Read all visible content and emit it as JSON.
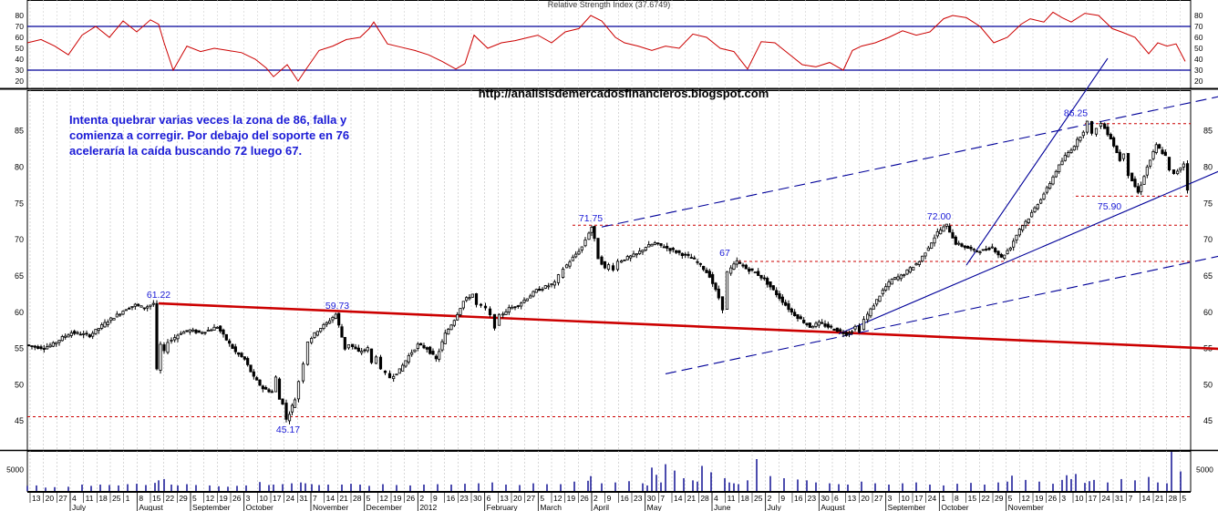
{
  "rsi_title": "Relative Strength Index (37.6749)",
  "url": "http://analisisdemercadosfinancieros.blogspot.com",
  "note": "Intenta quebrar varias veces la zona de 86, falla y comienza a corregir. Por debajo del soporte en 76 aceleraría la caída buscando 72 luego 67.",
  "colors": {
    "price": "#000000",
    "rsi": "#cc0000",
    "support": "#cc0000",
    "trend": "#000099",
    "annotation": "#1a1ad6"
  },
  "chart_data": [
    {
      "type": "line",
      "panel": "rsi",
      "title": "Relative Strength Index (37.6749)",
      "ylim": [
        15,
        85
      ],
      "yticks": [
        20,
        30,
        40,
        50,
        60,
        70,
        80
      ],
      "reference_lines": [
        30,
        70
      ],
      "x": [
        0,
        15,
        30,
        45,
        60,
        75,
        90,
        105,
        120,
        135,
        144,
        150,
        160,
        175,
        190,
        205,
        220,
        235,
        250,
        262,
        270,
        285,
        297,
        305,
        320,
        335,
        350,
        365,
        375,
        380,
        395,
        410,
        425,
        440,
        455,
        470,
        480,
        490,
        505,
        520,
        535,
        550,
        560,
        575,
        590,
        605,
        618,
        630,
        645,
        655,
        670,
        685,
        700,
        715,
        730,
        745,
        760,
        775,
        790,
        805,
        820,
        835,
        850,
        865,
        880,
        895,
        905,
        915,
        930,
        945,
        960,
        975,
        990,
        1005,
        1015,
        1030,
        1045,
        1060,
        1075,
        1090,
        1100,
        1115,
        1125,
        1135,
        1145,
        1160,
        1175,
        1190,
        1200,
        1215,
        1230,
        1240,
        1250,
        1260,
        1270
      ],
      "values": [
        55,
        58,
        52,
        44,
        62,
        70,
        60,
        75,
        65,
        76,
        72,
        55,
        30,
        52,
        47,
        50,
        48,
        46,
        40,
        32,
        24,
        35,
        20,
        30,
        48,
        52,
        58,
        60,
        68,
        74,
        54,
        51,
        48,
        44,
        38,
        31,
        36,
        62,
        50,
        55,
        57,
        60,
        62,
        55,
        65,
        68,
        80,
        75,
        60,
        55,
        52,
        48,
        52,
        50,
        63,
        60,
        50,
        47,
        31,
        56,
        55,
        45,
        35,
        33,
        37,
        30,
        48,
        52,
        55,
        60,
        66,
        62,
        65,
        77,
        80,
        78,
        70,
        55,
        60,
        72,
        77,
        74,
        83,
        78,
        74,
        82,
        80,
        68,
        65,
        60,
        45,
        55,
        52,
        54,
        38
      ]
    },
    {
      "type": "candlestick",
      "panel": "price",
      "ylim": [
        41,
        91
      ],
      "yticks": [
        45,
        50,
        55,
        60,
        65,
        70,
        75,
        80,
        85
      ],
      "x_tick_labels": [
        "13",
        "20",
        "27",
        "4",
        "11",
        "18",
        "25",
        "1",
        "8",
        "15",
        "22",
        "29",
        "5",
        "12",
        "19",
        "26",
        "3",
        "10",
        "17",
        "24",
        "31",
        "7",
        "14",
        "21",
        "28",
        "5",
        "12",
        "19",
        "26",
        "2",
        "9",
        "16",
        "23",
        "30",
        "6",
        "13",
        "20",
        "27",
        "5",
        "12",
        "19",
        "26",
        "2",
        "9",
        "16",
        "23",
        "30",
        "7",
        "14",
        "21",
        "28",
        "4",
        "11",
        "18",
        "25",
        "2",
        "9",
        "16",
        "23",
        "30",
        "6",
        "13",
        "20",
        "27",
        "3",
        "10",
        "17",
        "24",
        "1",
        "8",
        "15",
        "22",
        "29",
        "5",
        "12",
        "19",
        "26",
        "3",
        "10",
        "17",
        "24",
        "31",
        "7",
        "14",
        "21",
        "28",
        "5"
      ],
      "x_month_labels": [
        "July",
        "August",
        "September",
        "October",
        "November",
        "December",
        "2012",
        "February",
        "March",
        "April",
        "May",
        "June",
        "July",
        "August",
        "September",
        "October",
        "November"
      ],
      "close_x": [
        0,
        10,
        20,
        30,
        40,
        50,
        60,
        70,
        80,
        90,
        100,
        110,
        120,
        130,
        140,
        144,
        148,
        152,
        156,
        160,
        170,
        180,
        190,
        200,
        210,
        220,
        230,
        240,
        250,
        260,
        270,
        275,
        278,
        282,
        286,
        295,
        300,
        305,
        310,
        320,
        330,
        340,
        350,
        355,
        365,
        375,
        380,
        385,
        390,
        395,
        400,
        410,
        420,
        430,
        440,
        450,
        460,
        470,
        480,
        490,
        495,
        500,
        505,
        510,
        515,
        520,
        530,
        540,
        550,
        560,
        570,
        580,
        585,
        590,
        600,
        610,
        614,
        618,
        620,
        624,
        628,
        632,
        635,
        640,
        645,
        650,
        660,
        670,
        680,
        690,
        700,
        710,
        720,
        730,
        740,
        750,
        760,
        765,
        770,
        780,
        790,
        800,
        810,
        820,
        830,
        840,
        850,
        860,
        870,
        880,
        890,
        900,
        906,
        910,
        915,
        920,
        930,
        940,
        950,
        960,
        970,
        980,
        990,
        1000,
        1010,
        1020,
        1030,
        1040,
        1050,
        1060,
        1070,
        1080,
        1090,
        1100,
        1110,
        1120,
        1130,
        1140,
        1150,
        1160,
        1165,
        1170,
        1175,
        1180,
        1190,
        1200,
        1205,
        1210,
        1220,
        1230,
        1240,
        1250,
        1255,
        1260,
        1270,
        1275
      ],
      "close_values": [
        55.5,
        55.2,
        55.1,
        55.6,
        56.5,
        57.2,
        57.0,
        56.8,
        57.8,
        58.8,
        59.6,
        60.5,
        61.0,
        60.6,
        61.22,
        52.0,
        55.5,
        54.5,
        56.0,
        56.2,
        57.2,
        57.5,
        57.2,
        57.5,
        58.0,
        56.2,
        54.5,
        53.5,
        51.0,
        49.5,
        49.0,
        51.0,
        48.0,
        47.5,
        45.17,
        48.0,
        50.5,
        53.0,
        56.0,
        57.5,
        58.5,
        59.73,
        55.0,
        55.6,
        54.5,
        55.0,
        53.0,
        54.0,
        52.0,
        51.5,
        51.0,
        52.0,
        54.0,
        55.5,
        55.0,
        53.5,
        57.0,
        59.0,
        61.5,
        62.5,
        61.0,
        60.8,
        60.5,
        59.5,
        58.0,
        59.5,
        60.5,
        61.0,
        62.0,
        63.0,
        63.5,
        64.0,
        65.0,
        66.0,
        67.5,
        69.0,
        70.0,
        71.0,
        71.75,
        70.0,
        67.5,
        66.8,
        66.0,
        66.5,
        66.0,
        67.0,
        67.5,
        68.0,
        69.0,
        69.5,
        69.0,
        68.5,
        68.0,
        67.5,
        66.5,
        65.0,
        62.0,
        60.5,
        65.5,
        67.0,
        66.0,
        65.5,
        64.5,
        63.0,
        61.5,
        60.0,
        59.0,
        58.0,
        58.5,
        58.0,
        57.5,
        57.0,
        57.5,
        58.0,
        57.5,
        59.0,
        61.0,
        63.0,
        64.5,
        65.0,
        66.0,
        67.0,
        69.0,
        71.0,
        72.0,
        69.5,
        69.0,
        68.5,
        68.5,
        69.0,
        67.5,
        69.0,
        71.5,
        73.0,
        75.0,
        77.0,
        79.5,
        81.5,
        83.0,
        85.0,
        86.25,
        84.5,
        85.5,
        86.0,
        84.0,
        81.0,
        82.0,
        79.0,
        76.5,
        80.0,
        83.0,
        81.5,
        79.5,
        79.0,
        80.5,
        77.0,
        76.5
      ],
      "labels": [
        {
          "text": "61.22",
          "x": 144,
          "y": 61.22
        },
        {
          "text": "45.17",
          "x": 286,
          "y": 45.17
        },
        {
          "text": "59.73",
          "x": 340,
          "y": 59.73
        },
        {
          "text": "71.75",
          "x": 618,
          "y": 71.75
        },
        {
          "text": "67",
          "x": 765,
          "y": 67
        },
        {
          "text": "72.00",
          "x": 1000,
          "y": 72
        },
        {
          "text": "86.25",
          "x": 1150,
          "y": 86.25
        },
        {
          "text": "75.90",
          "x": 1187,
          "y": 75.9
        }
      ],
      "support_levels": [
        86,
        76,
        72,
        67,
        45.6
      ],
      "trendlines": [
        {
          "style": "solid",
          "color": "red",
          "from": [
            144,
            61.22
          ],
          "to": [
            1336,
            54.8
          ]
        },
        {
          "style": "dashed",
          "color": "blue",
          "from": [
            630,
            71.75
          ],
          "to": [
            1336,
            90.5
          ]
        },
        {
          "style": "dashed",
          "color": "blue",
          "from": [
            700,
            51.5
          ],
          "to": [
            1336,
            68.5
          ]
        },
        {
          "style": "solid",
          "color": "blue",
          "from": [
            890,
            57.0
          ],
          "to": [
            1336,
            81.0
          ]
        },
        {
          "style": "solid",
          "color": "blue",
          "from": [
            1030,
            66.5
          ],
          "to": [
            1185,
            95.0
          ]
        }
      ]
    },
    {
      "type": "bar",
      "panel": "volume",
      "ylim": [
        0,
        9000
      ],
      "yticks": [
        5000
      ],
      "x": [
        0,
        10,
        20,
        30,
        45,
        60,
        70,
        80,
        90,
        100,
        110,
        120,
        130,
        140,
        144,
        150,
        158,
        165,
        175,
        185,
        200,
        210,
        220,
        230,
        240,
        255,
        265,
        270,
        280,
        290,
        300,
        305,
        312,
        320,
        330,
        345,
        355,
        365,
        375,
        390,
        405,
        420,
        435,
        450,
        465,
        480,
        495,
        510,
        525,
        540,
        555,
        570,
        585,
        600,
        615,
        618,
        630,
        645,
        660,
        675,
        680,
        685,
        690,
        695,
        700,
        710,
        720,
        730,
        735,
        740,
        750,
        765,
        770,
        775,
        780,
        790,
        800,
        815,
        830,
        845,
        855,
        865,
        880,
        890,
        900,
        915,
        930,
        945,
        960,
        975,
        990,
        1005,
        1020,
        1035,
        1050,
        1065,
        1075,
        1080,
        1095,
        1110,
        1125,
        1135,
        1140,
        1145,
        1150,
        1160,
        1165,
        1170,
        1185,
        1200,
        1215,
        1230,
        1240,
        1250,
        1255,
        1265
      ],
      "values": [
        1200,
        1300,
        800,
        900,
        1000,
        1500,
        1200,
        1500,
        1400,
        1300,
        1600,
        1700,
        1400,
        1900,
        2500,
        2800,
        1500,
        1300,
        1600,
        1400,
        1300,
        1100,
        1000,
        1200,
        1300,
        2100,
        1400,
        1500,
        1600,
        1800,
        2000,
        1800,
        1600,
        1400,
        1500,
        1500,
        1700,
        1500,
        1200,
        1600,
        1400,
        1300,
        1500,
        1600,
        1500,
        1700,
        1800,
        2000,
        1500,
        1400,
        1800,
        1600,
        1600,
        2200,
        2400,
        3500,
        1800,
        2000,
        2300,
        1800,
        1300,
        5500,
        3800,
        2000,
        6300,
        4800,
        3000,
        2500,
        2200,
        5900,
        4400,
        3000,
        2000,
        1800,
        1600,
        2500,
        7500,
        3500,
        3000,
        2700,
        2500,
        2000,
        1800,
        1600,
        1500,
        2200,
        1800,
        1500,
        1800,
        2000,
        1500,
        1300,
        1700,
        1900,
        1500,
        2000,
        2200,
        3600,
        2600,
        2200,
        1700,
        2600,
        3700,
        2800,
        4000,
        1900,
        2300,
        2600,
        2000,
        2800,
        2500,
        3300,
        2000,
        1800,
        9200,
        4600
      ]
    }
  ]
}
